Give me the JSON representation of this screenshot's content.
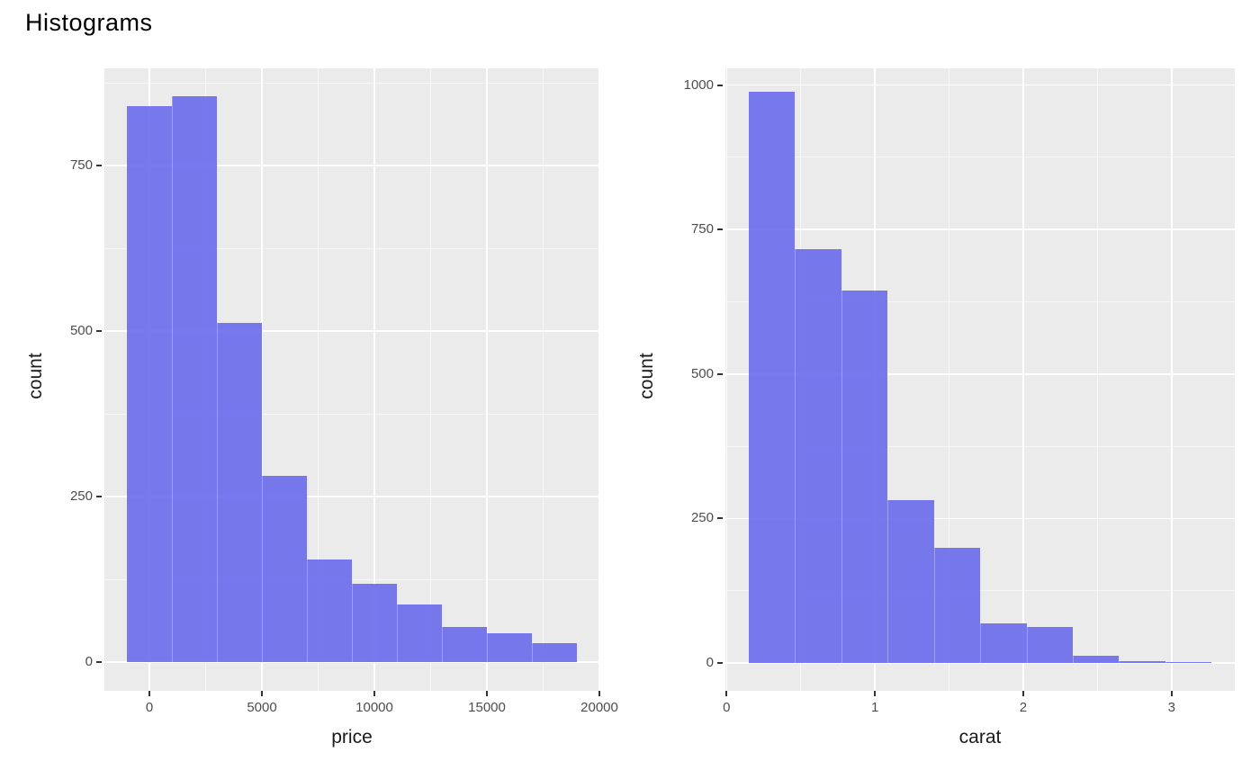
{
  "title": "Histograms",
  "colors": {
    "bar_fill": "#6568EC",
    "bar_opacity": 0.88,
    "panel_bg": "#EBEBEB",
    "gridline": "#FFFFFF",
    "tick_text": "#4D4D4D",
    "axis_title_text": "#1A1A1A",
    "title_text": "#000000",
    "tick_mark": "#333333",
    "background": "#FFFFFF"
  },
  "chart_data": [
    {
      "name": "price-histogram",
      "type": "bar",
      "title": "",
      "xlabel": "price",
      "ylabel": "count",
      "bin_start": -1000,
      "bin_width": 2000,
      "bin_edges": [
        -1000,
        1000,
        3000,
        5000,
        7000,
        9000,
        11000,
        13000,
        15000,
        17000,
        19000
      ],
      "values": [
        840,
        855,
        512,
        282,
        155,
        118,
        87,
        53,
        44,
        28
      ],
      "xlim": [
        -2000,
        20000
      ],
      "ylim": [
        0,
        897
      ],
      "x_ticks": {
        "major": [
          0,
          5000,
          10000,
          15000,
          20000
        ],
        "labels": [
          "0",
          "5000",
          "10000",
          "15000",
          "20000"
        ],
        "minor": [
          2500,
          7500,
          12500,
          17500
        ]
      },
      "y_ticks": {
        "major": [
          0,
          250,
          500,
          750
        ],
        "labels": [
          "0",
          "250",
          "500",
          "750"
        ],
        "minor": [
          125,
          375,
          625,
          875
        ]
      },
      "grid": "on",
      "legend": "none"
    },
    {
      "name": "carat-histogram",
      "type": "bar",
      "title": "",
      "xlabel": "carat",
      "ylabel": "count",
      "bin_start": 0.15,
      "bin_width": 0.312,
      "bin_edges": [
        0.15,
        0.462,
        0.774,
        1.086,
        1.398,
        1.71,
        2.022,
        2.334,
        2.646,
        2.958,
        3.27
      ],
      "values": [
        988,
        716,
        645,
        282,
        200,
        69,
        63,
        13,
        3,
        2
      ],
      "xlim": [
        -0.008,
        3.426
      ],
      "ylim": [
        0,
        1029
      ],
      "x_ticks": {
        "major": [
          0,
          1,
          2,
          3
        ],
        "labels": [
          "0",
          "1",
          "2",
          "3"
        ],
        "minor": [
          0.5,
          1.5,
          2.5
        ]
      },
      "y_ticks": {
        "major": [
          0,
          250,
          500,
          750,
          1000
        ],
        "labels": [
          "0",
          "250",
          "500",
          "750",
          "1000"
        ],
        "minor": [
          125,
          375,
          625,
          875
        ]
      },
      "grid": "on",
      "legend": "none"
    }
  ]
}
